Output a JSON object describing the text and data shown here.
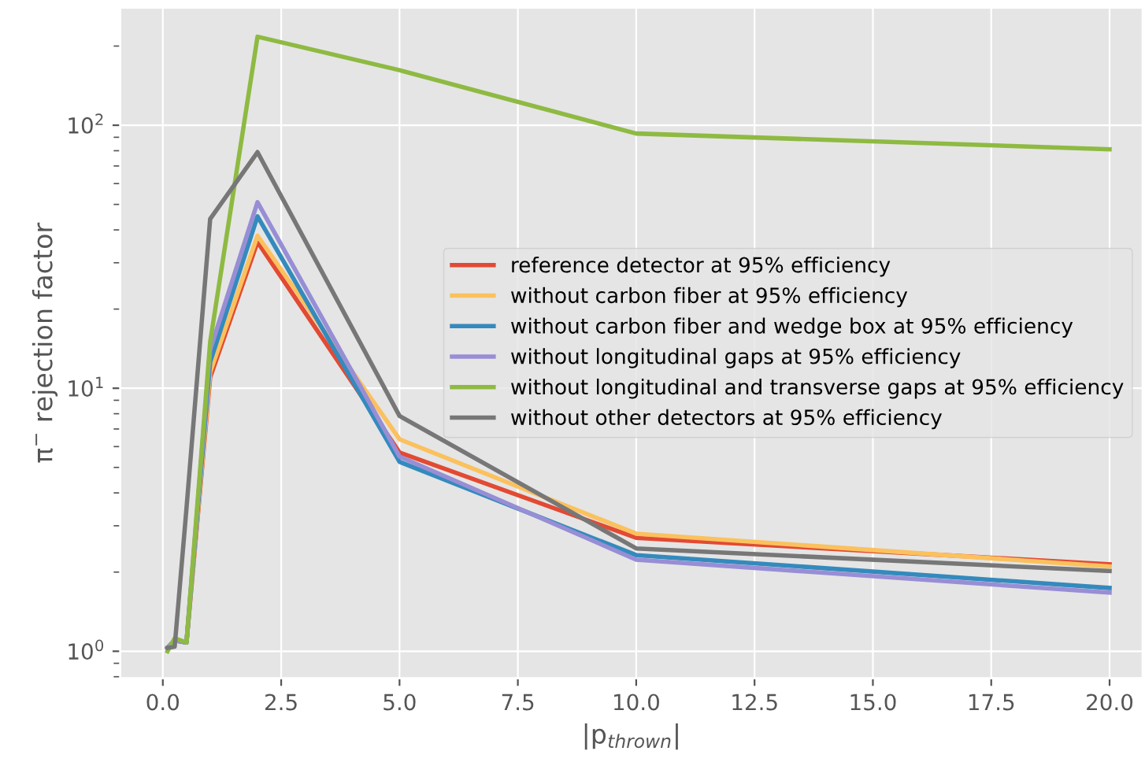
{
  "chart_data": {
    "type": "line",
    "xlabel": "|p$_{thrown}$|",
    "ylabel": "π$^{−}$ rejection factor",
    "x": [
      0.1,
      0.25,
      0.5,
      1,
      2,
      5,
      10,
      20
    ],
    "series": [
      {
        "name": "reference detector at 95% efficiency",
        "color": "#E24A33",
        "values": [
          1.03,
          1.1,
          1.08,
          11,
          36,
          5.7,
          2.7,
          2.14
        ]
      },
      {
        "name": "without carbon fiber at 95% efficiency",
        "color": "#FBC15E",
        "values": [
          1.03,
          1.1,
          1.08,
          11.5,
          38,
          6.4,
          2.8,
          2.1
        ]
      },
      {
        "name": "without carbon fiber and wedge box at 95% efficiency",
        "color": "#348ABD",
        "values": [
          1.03,
          1.1,
          1.08,
          12.6,
          45,
          5.25,
          2.32,
          1.74
        ]
      },
      {
        "name": "without longitudinal gaps at 95% efficiency",
        "color": "#988ED5",
        "values": [
          1.03,
          1.1,
          1.08,
          14,
          51,
          5.5,
          2.23,
          1.67
        ]
      },
      {
        "name": "without longitudinal and transverse gaps at 95% efficiency",
        "color": "#8EBA42",
        "values": [
          1.0,
          1.12,
          1.08,
          15,
          217,
          162,
          93,
          81
        ]
      },
      {
        "name": "without other detectors at 95% efficiency",
        "color": "#777777",
        "values": [
          1.03,
          1.04,
          3.5,
          44,
          79,
          7.85,
          2.46,
          2.02
        ]
      }
    ],
    "log": "y",
    "xlim": [
      -0.9,
      20.7
    ],
    "ylim": [
      0.79,
      280
    ],
    "xticks": [
      {
        "value": 0,
        "label": "0.0"
      },
      2.5,
      {
        "value": 5,
        "label": "5.0"
      },
      7.5,
      {
        "value": 10,
        "label": "10.0"
      },
      12.5,
      {
        "value": 15,
        "label": "15.0"
      },
      17.5,
      {
        "value": 20,
        "label": "20.0"
      }
    ],
    "yticks": [
      {
        "value": 1,
        "label": "10$^{0}$"
      },
      {
        "value": 10,
        "label": "10$^{1}$"
      },
      {
        "value": 100,
        "label": "10$^{2}$"
      }
    ],
    "grid": true,
    "legend": "center right",
    "marker": "none",
    "line_style": "solid"
  }
}
